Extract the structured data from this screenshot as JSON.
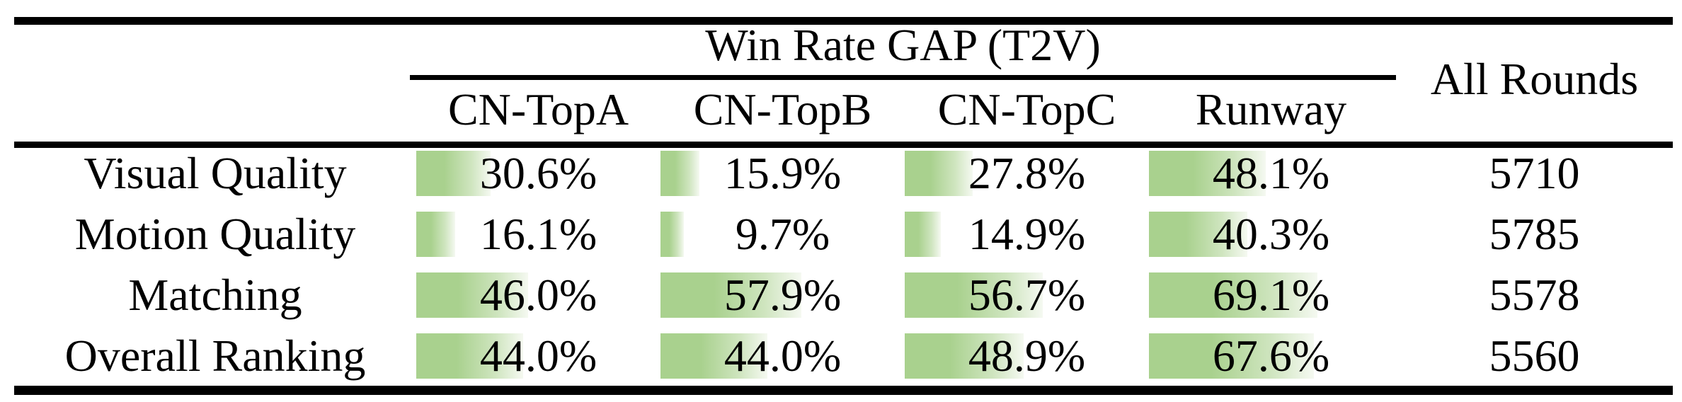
{
  "table": {
    "title": "Win Rate GAP (T2V)",
    "all_rounds_header": "All Rounds",
    "columns": [
      "CN-TopA",
      "CN-TopB",
      "CN-TopC",
      "Runway"
    ],
    "rows": [
      {
        "label": "Visual Quality",
        "cells": [
          {
            "pct": 30.6,
            "text": "30.6%"
          },
          {
            "pct": 15.9,
            "text": "15.9%"
          },
          {
            "pct": 27.8,
            "text": "27.8%"
          },
          {
            "pct": 48.1,
            "text": "48.1%"
          }
        ],
        "all_rounds": "5710"
      },
      {
        "label": "Motion Quality",
        "cells": [
          {
            "pct": 16.1,
            "text": "16.1%"
          },
          {
            "pct": 9.7,
            "text": "9.7%"
          },
          {
            "pct": 14.9,
            "text": "14.9%"
          },
          {
            "pct": 40.3,
            "text": "40.3%"
          }
        ],
        "all_rounds": "5785"
      },
      {
        "label": "Matching",
        "cells": [
          {
            "pct": 46.0,
            "text": "46.0%"
          },
          {
            "pct": 57.9,
            "text": "57.9%"
          },
          {
            "pct": 56.7,
            "text": "56.7%"
          },
          {
            "pct": 69.1,
            "text": "69.1%"
          }
        ],
        "all_rounds": "5578"
      },
      {
        "label": "Overall Ranking",
        "cells": [
          {
            "pct": 44.0,
            "text": "44.0%"
          },
          {
            "pct": 44.0,
            "text": "44.0%"
          },
          {
            "pct": 48.9,
            "text": "48.9%"
          },
          {
            "pct": 67.6,
            "text": "67.6%"
          }
        ],
        "all_rounds": "5560"
      }
    ],
    "colors": {
      "bar_green": "#a9d18e",
      "bar_fade": "#f5f9f1",
      "rule": "#000000"
    }
  },
  "chart_data": {
    "type": "table",
    "title": "Win Rate GAP (T2V)",
    "categories": [
      "Visual Quality",
      "Motion Quality",
      "Matching",
      "Overall Ranking"
    ],
    "series": [
      {
        "name": "CN-TopA",
        "unit": "%",
        "values": [
          30.6,
          16.1,
          46.0,
          44.0
        ]
      },
      {
        "name": "CN-TopB",
        "unit": "%",
        "values": [
          15.9,
          9.7,
          57.9,
          44.0
        ]
      },
      {
        "name": "CN-TopC",
        "unit": "%",
        "values": [
          27.8,
          14.9,
          56.7,
          48.9
        ]
      },
      {
        "name": "Runway",
        "unit": "%",
        "values": [
          48.1,
          40.3,
          69.1,
          67.6
        ]
      },
      {
        "name": "All Rounds",
        "unit": "rounds",
        "values": [
          5710,
          5785,
          5578,
          5560
        ]
      }
    ],
    "layout": {
      "bars": "in-cell horizontal data bars, width proportional to %, 100% = full column width"
    }
  }
}
